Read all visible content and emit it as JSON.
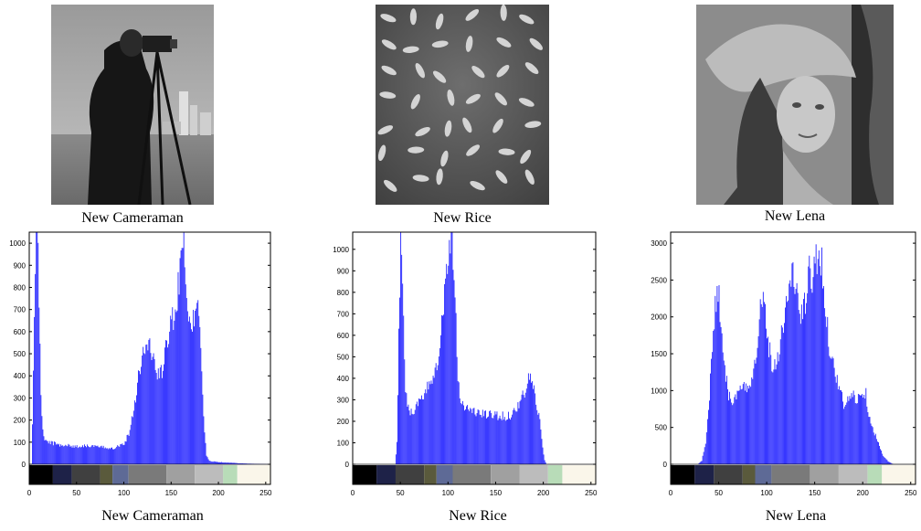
{
  "images": [
    {
      "caption": "New Cameraman",
      "icon": "cameraman-photo"
    },
    {
      "caption": "New Rice",
      "icon": "rice-grains-photo"
    },
    {
      "caption": "New Lena",
      "icon": "lena-portrait-photo"
    }
  ],
  "bottom_captions": [
    "New Cameraman",
    "New Rice",
    "New Lena"
  ],
  "colors": {
    "bar": "#2020ff",
    "bar_fill": "#7a7aff",
    "axes": "#000000"
  },
  "colorbar": {
    "segments": [
      {
        "from": 0,
        "to": 25,
        "color": "#000000"
      },
      {
        "from": 25,
        "to": 45,
        "color": "#1e2248"
      },
      {
        "from": 45,
        "to": 75,
        "color": "#404040"
      },
      {
        "from": 75,
        "to": 88,
        "color": "#5a5a3c"
      },
      {
        "from": 88,
        "to": 105,
        "color": "#5e6a96"
      },
      {
        "from": 105,
        "to": 145,
        "color": "#7a7a7a"
      },
      {
        "from": 145,
        "to": 175,
        "color": "#a0a0a0"
      },
      {
        "from": 175,
        "to": 205,
        "color": "#bcbcbc"
      },
      {
        "from": 205,
        "to": 220,
        "color": "#b8dcb8"
      },
      {
        "from": 220,
        "to": 255,
        "color": "#faf6ea"
      }
    ]
  },
  "chart_data": [
    {
      "type": "bar",
      "title": "",
      "xlabel": "",
      "ylabel": "",
      "xlim": [
        0,
        255
      ],
      "ylim": [
        0,
        1050
      ],
      "xticks": [
        "0",
        "50",
        "100",
        "150",
        "200",
        "250"
      ],
      "yticks": [
        "0",
        "100",
        "200",
        "300",
        "400",
        "500",
        "600",
        "700",
        "800",
        "900",
        "1000"
      ],
      "ytick_values": [
        0,
        100,
        200,
        300,
        400,
        500,
        600,
        700,
        800,
        900,
        1000
      ],
      "caption": "New Cameraman",
      "profile": [
        [
          0,
          0
        ],
        [
          2,
          0
        ],
        [
          3,
          170
        ],
        [
          5,
          700
        ],
        [
          7,
          1050
        ],
        [
          9,
          1050
        ],
        [
          10,
          700
        ],
        [
          12,
          300
        ],
        [
          14,
          160
        ],
        [
          16,
          110
        ],
        [
          20,
          100
        ],
        [
          30,
          90
        ],
        [
          40,
          85
        ],
        [
          50,
          80
        ],
        [
          60,
          85
        ],
        [
          70,
          80
        ],
        [
          80,
          75
        ],
        [
          90,
          75
        ],
        [
          100,
          95
        ],
        [
          105,
          140
        ],
        [
          110,
          250
        ],
        [
          115,
          400
        ],
        [
          120,
          500
        ],
        [
          125,
          540
        ],
        [
          128,
          530
        ],
        [
          132,
          450
        ],
        [
          136,
          400
        ],
        [
          140,
          420
        ],
        [
          145,
          540
        ],
        [
          150,
          650
        ],
        [
          154,
          700
        ],
        [
          158,
          820
        ],
        [
          160,
          1050
        ],
        [
          162,
          1050
        ],
        [
          165,
          900
        ],
        [
          168,
          620
        ],
        [
          172,
          650
        ],
        [
          176,
          700
        ],
        [
          180,
          660
        ],
        [
          184,
          200
        ],
        [
          187,
          40
        ],
        [
          190,
          15
        ],
        [
          200,
          10
        ],
        [
          210,
          8
        ],
        [
          220,
          5
        ],
        [
          230,
          3
        ],
        [
          240,
          2
        ],
        [
          255,
          0
        ]
      ]
    },
    {
      "type": "bar",
      "title": "",
      "xlabel": "",
      "ylabel": "",
      "xlim": [
        0,
        255
      ],
      "ylim": [
        0,
        1080
      ],
      "xticks": [
        "0",
        "50",
        "100",
        "150",
        "200",
        "250"
      ],
      "yticks": [
        "0",
        "100",
        "200",
        "300",
        "400",
        "500",
        "600",
        "700",
        "800",
        "900",
        "1000"
      ],
      "ytick_values": [
        0,
        100,
        200,
        300,
        400,
        500,
        600,
        700,
        800,
        900,
        1000
      ],
      "caption": "New Rice",
      "profile": [
        [
          0,
          0
        ],
        [
          44,
          0
        ],
        [
          46,
          100
        ],
        [
          48,
          600
        ],
        [
          50,
          1000
        ],
        [
          51,
          1060
        ],
        [
          53,
          700
        ],
        [
          55,
          350
        ],
        [
          58,
          260
        ],
        [
          62,
          240
        ],
        [
          68,
          280
        ],
        [
          72,
          300
        ],
        [
          76,
          320
        ],
        [
          80,
          380
        ],
        [
          84,
          420
        ],
        [
          88,
          480
        ],
        [
          92,
          600
        ],
        [
          96,
          800
        ],
        [
          100,
          1000
        ],
        [
          102,
          1080
        ],
        [
          104,
          1080
        ],
        [
          107,
          800
        ],
        [
          110,
          400
        ],
        [
          114,
          280
        ],
        [
          120,
          260
        ],
        [
          130,
          240
        ],
        [
          140,
          230
        ],
        [
          150,
          230
        ],
        [
          160,
          220
        ],
        [
          165,
          230
        ],
        [
          170,
          250
        ],
        [
          175,
          290
        ],
        [
          180,
          330
        ],
        [
          184,
          390
        ],
        [
          186,
          410
        ],
        [
          188,
          380
        ],
        [
          192,
          300
        ],
        [
          196,
          200
        ],
        [
          199,
          80
        ],
        [
          201,
          20
        ],
        [
          203,
          0
        ],
        [
          255,
          0
        ]
      ]
    },
    {
      "type": "bar",
      "title": "",
      "xlabel": "",
      "ylabel": "",
      "xlim": [
        0,
        255
      ],
      "ylim": [
        0,
        3150
      ],
      "xticks": [
        "0",
        "50",
        "100",
        "150",
        "200",
        "250"
      ],
      "yticks": [
        "0",
        "500",
        "1000",
        "1500",
        "2000",
        "2500",
        "3000"
      ],
      "ytick_values": [
        0,
        500,
        1000,
        1500,
        2000,
        2500,
        3000
      ],
      "caption": "New Lena",
      "profile": [
        [
          0,
          0
        ],
        [
          28,
          0
        ],
        [
          32,
          50
        ],
        [
          36,
          300
        ],
        [
          40,
          900
        ],
        [
          43,
          1600
        ],
        [
          46,
          2200
        ],
        [
          48,
          2300
        ],
        [
          50,
          2250
        ],
        [
          53,
          1800
        ],
        [
          56,
          1300
        ],
        [
          60,
          950
        ],
        [
          65,
          850
        ],
        [
          70,
          950
        ],
        [
          74,
          1050
        ],
        [
          78,
          1000
        ],
        [
          82,
          1100
        ],
        [
          86,
          1300
        ],
        [
          90,
          1700
        ],
        [
          93,
          2100
        ],
        [
          95,
          2300
        ],
        [
          98,
          2100
        ],
        [
          102,
          1600
        ],
        [
          106,
          1300
        ],
        [
          110,
          1400
        ],
        [
          114,
          1700
        ],
        [
          118,
          2000
        ],
        [
          122,
          2300
        ],
        [
          126,
          2600
        ],
        [
          129,
          2500
        ],
        [
          132,
          2200
        ],
        [
          136,
          2000
        ],
        [
          140,
          2200
        ],
        [
          144,
          2600
        ],
        [
          147,
          2500
        ],
        [
          150,
          2700
        ],
        [
          153,
          2950
        ],
        [
          156,
          2800
        ],
        [
          160,
          2300
        ],
        [
          164,
          1700
        ],
        [
          168,
          1400
        ],
        [
          172,
          1200
        ],
        [
          176,
          1000
        ],
        [
          180,
          800
        ],
        [
          184,
          850
        ],
        [
          188,
          950
        ],
        [
          192,
          900
        ],
        [
          196,
          900
        ],
        [
          200,
          1000
        ],
        [
          203,
          950
        ],
        [
          206,
          700
        ],
        [
          210,
          500
        ],
        [
          214,
          350
        ],
        [
          218,
          200
        ],
        [
          222,
          100
        ],
        [
          226,
          40
        ],
        [
          230,
          10
        ],
        [
          232,
          0
        ],
        [
          255,
          0
        ]
      ]
    }
  ]
}
